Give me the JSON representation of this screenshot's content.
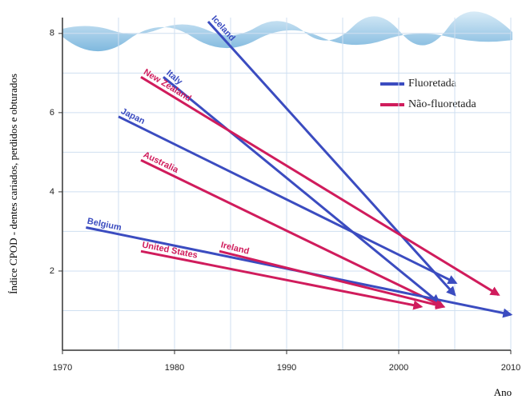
{
  "chart_data": {
    "type": "arrow",
    "x_label": "Ano",
    "y_label": "Índice CPOD - dentes cariados, perdidos e obturados",
    "xlim": [
      1970,
      2010
    ],
    "ylim": [
      0,
      8.4
    ],
    "xticks": [
      1970,
      1980,
      1990,
      2000,
      2010
    ],
    "yticks": [
      2,
      4,
      6,
      8
    ],
    "minor_grid": {
      "x": [
        1975,
        1985,
        1995,
        2005
      ],
      "y": [
        1,
        3,
        5,
        7
      ]
    },
    "grid": true,
    "legend_position": "upper right",
    "legend": [
      {
        "name": "Fluoretada",
        "color": "#3b4cc0"
      },
      {
        "name": "Não-fluoretada",
        "color": "#d01c5c"
      }
    ],
    "series": [
      {
        "name": "Iceland",
        "color": "#3b4cc0",
        "x": [
          1983,
          2005
        ],
        "values": [
          8.3,
          1.4
        ]
      },
      {
        "name": "Italy",
        "color": "#3b4cc0",
        "x": [
          1979,
          2003.6
        ],
        "values": [
          6.9,
          1.2
        ]
      },
      {
        "name": "New Zealand",
        "color": "#d01c5c",
        "x": [
          1977,
          2008.9
        ],
        "values": [
          6.9,
          1.4
        ]
      },
      {
        "name": "Japan",
        "color": "#3b4cc0",
        "x": [
          1975,
          2005.1
        ],
        "values": [
          5.9,
          1.7
        ]
      },
      {
        "name": "Australia",
        "color": "#d01c5c",
        "x": [
          1977,
          2004
        ],
        "values": [
          4.8,
          1.1
        ]
      },
      {
        "name": "Belgium",
        "color": "#3b4cc0",
        "x": [
          1972.1,
          2010
        ],
        "values": [
          3.1,
          0.9
        ]
      },
      {
        "name": "United States",
        "color": "#d01c5c",
        "x": [
          1977,
          2002
        ],
        "values": [
          2.5,
          1.1
        ]
      },
      {
        "name": "Ireland",
        "color": "#d01c5c",
        "x": [
          1984,
          2004
        ],
        "values": [
          2.5,
          1.1
        ]
      }
    ]
  }
}
